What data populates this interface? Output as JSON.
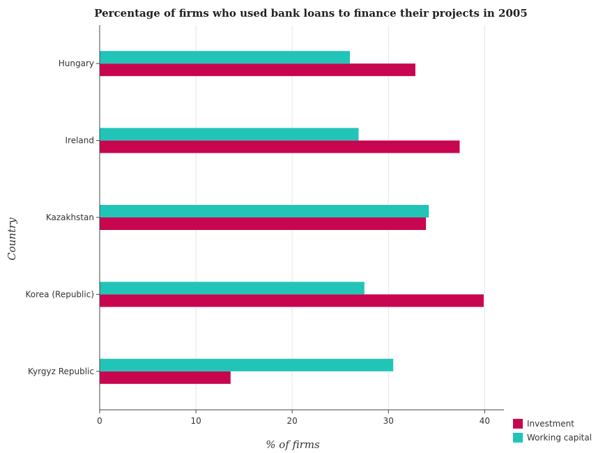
{
  "chart_data": {
    "type": "bar",
    "orientation": "horizontal",
    "title": "Percentage of firms who used bank loans to finance their projects in 2005",
    "xlabel": "% of firms",
    "ylabel": "Country",
    "categories": [
      "Hungary",
      "Ireland",
      "Kazakhstan",
      "Korea (Republic)",
      "Kyrgyz Republic"
    ],
    "series": [
      {
        "name": "Investment",
        "color": "#c8064f",
        "values": [
          32.8,
          37.4,
          33.9,
          39.9,
          13.6
        ]
      },
      {
        "name": "Working capital",
        "color": "#22c4b8",
        "values": [
          26.0,
          26.9,
          34.2,
          27.5,
          30.5
        ]
      }
    ],
    "xlim": [
      0,
      42
    ],
    "xticks": [
      0,
      10,
      20,
      30,
      40
    ],
    "grid": true,
    "legend_position": "bottom-right"
  }
}
